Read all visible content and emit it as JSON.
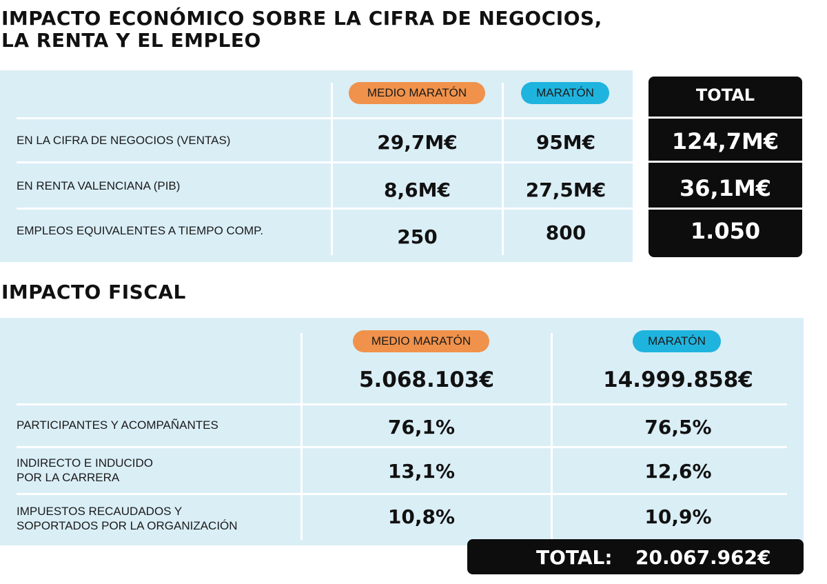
{
  "economic": {
    "title_line1": "IMPACTO ECONÓMICO SOBRE LA CIFRA DE NEGOCIOS,",
    "title_line2": "LA RENTA Y EL EMPLEO",
    "col_half": "MEDIO MARATÓN",
    "col_full": "MARATÓN",
    "col_total": "TOTAL",
    "rows": [
      {
        "label": "EN LA CIFRA DE NEGOCIOS (VENTAS)",
        "half": "29,7M€",
        "full": "95M€",
        "total": "124,7M€"
      },
      {
        "label": "EN RENTA VALENCIANA (PIB)",
        "half": "8,6M€",
        "full": "27,5M€",
        "total": "36,1M€"
      },
      {
        "label": "EMPLEOS EQUIVALENTES A TIEMPO COMP.",
        "half": "250",
        "full": "800",
        "total": "1.050"
      }
    ]
  },
  "fiscal": {
    "title": "IMPACTO FISCAL",
    "col_half": "MEDIO MARATÓN",
    "col_full": "MARATÓN",
    "half_total": "5.068.103€",
    "full_total": "14.999.858€",
    "rows": [
      {
        "label_line1": "PARTICIPANTES Y ACOMPAÑANTES",
        "label_line2": "",
        "half": "76,1%",
        "full": "76,5%"
      },
      {
        "label_line1": "INDIRECTO E INDUCIDO",
        "label_line2": "POR LA CARRERA",
        "half": "13,1%",
        "full": "12,6%"
      },
      {
        "label_line1": "IMPUESTOS RECAUDADOS Y",
        "label_line2": "SOPORTADOS POR LA ORGANIZACIÓN",
        "half": "10,8%",
        "full": "10,9%"
      }
    ],
    "grand_total_label": "TOTAL:",
    "grand_total_value": "20.067.962€"
  },
  "colors": {
    "panel": "#daeef6",
    "half_marathon_pill": "#f0924b",
    "marathon_pill": "#1fb4de",
    "total_box": "#0d0d0d"
  }
}
